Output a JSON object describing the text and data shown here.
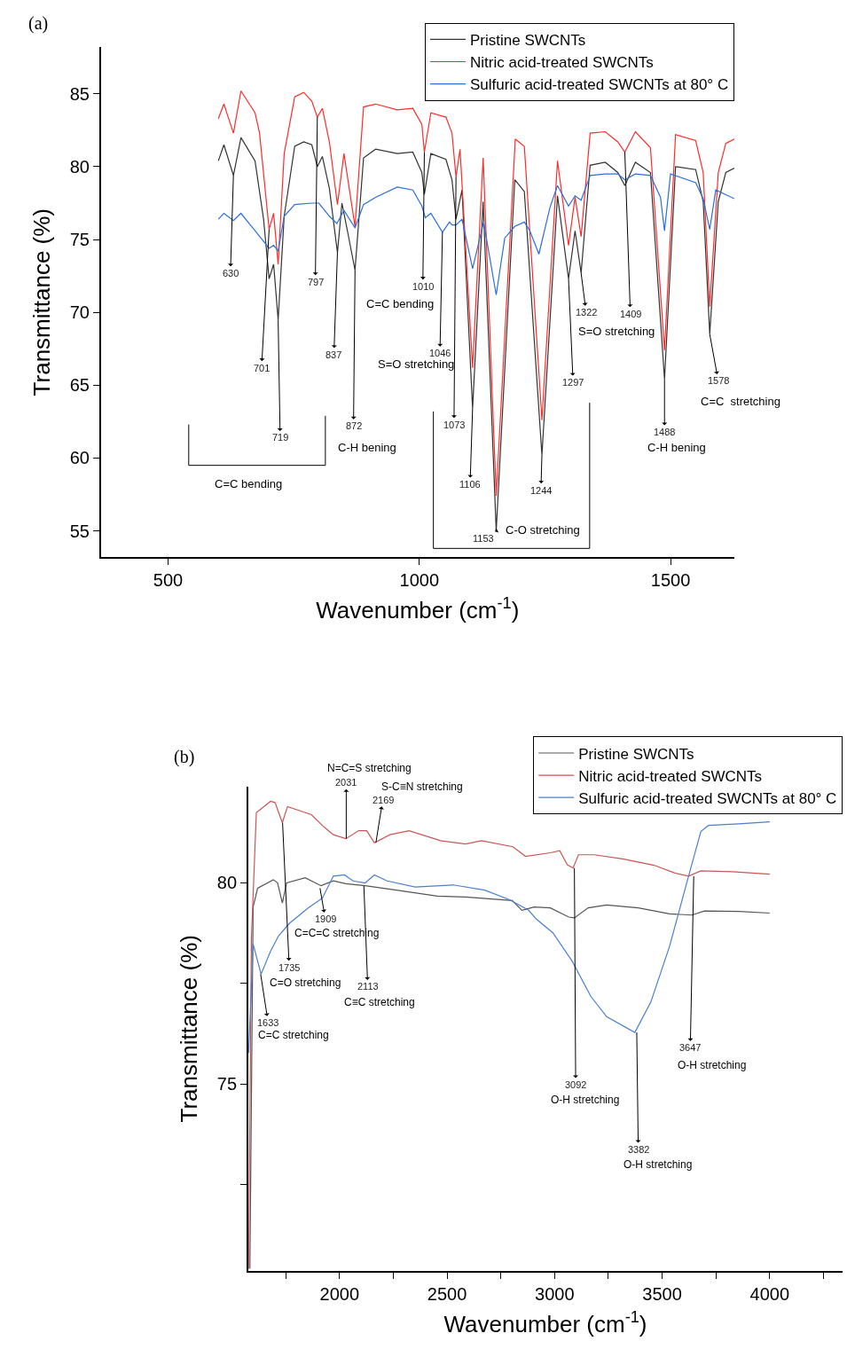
{
  "chart_data": [
    {
      "type": "line",
      "xlabel": "Wavenumber (cm$^{-1}$)",
      "ylabel": "Transmittance (%)",
      "xlim": [
        366,
        1627
      ],
      "ylim": [
        53.2,
        88.2
      ],
      "xticks": [
        500,
        1000,
        1500
      ],
      "yticks": [
        55,
        60,
        65,
        70,
        75,
        80,
        85
      ],
      "grid": false,
      "legend": "top right",
      "marker": "none",
      "line_style": "solid",
      "series": [
        {
          "name": "Pristine SWCNTs",
          "color": "#333333",
          "x": [
            600,
            611,
            630,
            645,
            673,
            690,
            701,
            710,
            719,
            731,
            752,
            770,
            786,
            797,
            807,
            821,
            837,
            846,
            858,
            872,
            889,
            913,
            956,
            987,
            1005,
            1010,
            1023,
            1053,
            1065,
            1073,
            1085,
            1106,
            1127,
            1153,
            1190,
            1209,
            1244,
            1275,
            1297,
            1310,
            1322,
            1340,
            1370,
            1395,
            1409,
            1430,
            1460,
            1488,
            1510,
            1550,
            1565,
            1578,
            1595,
            1610,
            1627
          ],
          "values": [
            80.4,
            81.5,
            79.4,
            82.0,
            80.4,
            76.4,
            72.3,
            73.3,
            69.5,
            76.6,
            81.4,
            81.7,
            81.5,
            80.0,
            80.7,
            78.5,
            74.1,
            77.5,
            75.4,
            72.9,
            80.6,
            81.2,
            80.9,
            81.0,
            79.6,
            78.1,
            80.9,
            80.5,
            79.1,
            76.4,
            78.4,
            63.4,
            77.6,
            55.0,
            79.1,
            78.3,
            60.2,
            78.0,
            72.3,
            75.6,
            72.7,
            80.1,
            80.3,
            79.6,
            78.7,
            80.3,
            79.6,
            65.4,
            80.0,
            79.8,
            77.6,
            68.5,
            77.6,
            79.6,
            79.9
          ]
        },
        {
          "name": "Nitric acid-treated SWCNTs",
          "color": "#ff2a2a",
          "x": [
            600,
            611,
            630,
            645,
            673,
            682,
            701,
            710,
            719,
            731,
            752,
            770,
            786,
            797,
            807,
            821,
            837,
            850,
            872,
            889,
            913,
            956,
            987,
            1005,
            1010,
            1023,
            1053,
            1065,
            1073,
            1081,
            1106,
            1127,
            1153,
            1191,
            1209,
            1244,
            1275,
            1297,
            1310,
            1322,
            1340,
            1370,
            1395,
            1409,
            1430,
            1460,
            1488,
            1510,
            1550,
            1565,
            1578,
            1595,
            1610,
            1627
          ],
          "values": [
            83.3,
            84.3,
            82.3,
            85.2,
            83.7,
            82.3,
            75.7,
            76.8,
            73.3,
            80.9,
            84.8,
            85.1,
            84.5,
            83.4,
            84.0,
            81.7,
            77.4,
            80.9,
            75.9,
            84.1,
            84.3,
            83.9,
            84.0,
            82.9,
            81.0,
            83.7,
            83.4,
            82.3,
            79.3,
            81.2,
            66.2,
            80.6,
            57.4,
            81.9,
            81.4,
            62.6,
            80.4,
            74.6,
            77.9,
            75.2,
            82.3,
            82.4,
            81.7,
            81.0,
            82.4,
            81.3,
            67.4,
            82.2,
            81.8,
            79.6,
            70.4,
            79.6,
            81.6,
            81.9
          ]
        },
        {
          "name": "Sulfuric acid-treated SWCNTs at 80° C",
          "color": "#2a6fdb",
          "x": [
            600,
            611,
            630,
            645,
            673,
            701,
            710,
            719,
            731,
            752,
            786,
            800,
            821,
            836,
            850,
            872,
            889,
            913,
            956,
            987,
            1005,
            1012,
            1023,
            1046,
            1060,
            1065,
            1073,
            1085,
            1106,
            1128,
            1153,
            1170,
            1190,
            1209,
            1220,
            1238,
            1260,
            1275,
            1297,
            1310,
            1322,
            1340,
            1370,
            1395,
            1409,
            1430,
            1460,
            1480,
            1488,
            1500,
            1550,
            1565,
            1578,
            1590,
            1627
          ],
          "values": [
            76.4,
            76.8,
            76.3,
            76.8,
            75.6,
            74.4,
            74.6,
            74.2,
            76.6,
            77.4,
            77.5,
            77.5,
            76.6,
            76.1,
            77.0,
            75.8,
            77.4,
            77.9,
            78.6,
            78.4,
            77.3,
            76.5,
            76.8,
            75.5,
            76.2,
            76.0,
            76.0,
            76.4,
            73.0,
            76.2,
            71.2,
            75.1,
            75.9,
            76.2,
            75.6,
            74.0,
            77.2,
            78.7,
            77.3,
            78.0,
            77.7,
            79.4,
            79.5,
            79.5,
            79.1,
            79.5,
            79.4,
            77.9,
            75.6,
            79.5,
            78.9,
            77.8,
            75.7,
            78.4,
            77.8
          ]
        }
      ],
      "annotations": [
        "(a)",
        {
          "text": "630",
          "x": 630,
          "y": 79.4
        },
        {
          "text": "701",
          "x": 701,
          "y": 75.7
        },
        {
          "text": "719",
          "x": 719,
          "y": 69.5
        },
        {
          "text": "797",
          "x": 797,
          "y": 83.4
        },
        {
          "text": "837",
          "x": 837,
          "y": 74.1
        },
        {
          "text": "872",
          "x": 872,
          "y": 72.9
        },
        {
          "text": "1010",
          "x": 1010,
          "y": 81.0
        },
        {
          "text": "1046",
          "x": 1046,
          "y": 75.5
        },
        {
          "text": "1073",
          "x": 1073,
          "y": 79.3
        },
        {
          "text": "1106",
          "x": 1106,
          "y": 63.4
        },
        {
          "text": "1153",
          "x": 1153,
          "y": 55.0
        },
        {
          "text": "1244",
          "x": 1244,
          "y": 60.2
        },
        {
          "text": "1297",
          "x": 1297,
          "y": 72.3
        },
        {
          "text": "1322",
          "x": 1322,
          "y": 72.7
        },
        {
          "text": "1409",
          "x": 1409,
          "y": 81.0
        },
        {
          "text": "1488",
          "x": 1488,
          "y": 65.4
        },
        {
          "text": "1578",
          "x": 1578,
          "y": 68.5
        },
        "C=C bending",
        "C-H bening",
        "C=C bending",
        "S=O stretching",
        "C-O stretching",
        "S=O stretching",
        "C-H bening",
        "C=C  stretching"
      ]
    },
    {
      "type": "line",
      "xlabel": "Wavenumber (cm$^{-1}$)",
      "ylabel": "Transmittance (%)",
      "xlim": [
        1575,
        4340
      ],
      "ylim": [
        70.35,
        82.4
      ],
      "xticks": [
        {
          "value": 1750,
          "label": null
        },
        2000,
        {
          "value": 2250,
          "label": null
        },
        2500,
        {
          "value": 2750,
          "label": null
        },
        3000,
        {
          "value": 3250,
          "label": null
        },
        3500,
        {
          "value": 3750,
          "label": null
        },
        4000,
        {
          "value": 4250,
          "label": null
        }
      ],
      "yticks": [
        {
          "value": 72.5,
          "label": null
        },
        75,
        {
          "value": 77.5,
          "label": null
        },
        80
      ],
      "grid": false,
      "legend": "top right",
      "marker": "none",
      "line_style": "solid",
      "series": [
        {
          "name": "Pristine SWCNTs",
          "color": "#555555",
          "x": [
            1583,
            1598,
            1619,
            1692,
            1712,
            1734,
            1754,
            1840,
            1914,
            1971,
            2029,
            2119,
            2265,
            2455,
            2586,
            2762,
            2803,
            2848,
            2905,
            2980,
            3066,
            3092,
            3156,
            3242,
            3389,
            3535,
            3638,
            3697,
            3857,
            4000
          ],
          "values": [
            70.4,
            79.4,
            79.87,
            80.08,
            80.0,
            79.5,
            80.0,
            80.13,
            79.93,
            80.05,
            79.98,
            79.93,
            79.82,
            79.67,
            79.65,
            79.58,
            79.56,
            79.32,
            79.4,
            79.38,
            79.15,
            79.13,
            79.38,
            79.45,
            79.38,
            79.23,
            79.2,
            79.3,
            79.29,
            79.25
          ]
        },
        {
          "name": "Nitric acid-treated SWCNTs",
          "color": "#cc5555",
          "x": [
            1577,
            1590,
            1613,
            1679,
            1700,
            1734,
            1758,
            1869,
            1926,
            1971,
            2029,
            2089,
            2126,
            2162,
            2234,
            2323,
            2470,
            2586,
            2660,
            2806,
            2865,
            2980,
            3024,
            3059,
            3086,
            3111,
            3184,
            3316,
            3462,
            3557,
            3623,
            3680,
            3828,
            4000
          ],
          "values": [
            70.4,
            78.6,
            81.75,
            82.03,
            82.0,
            81.5,
            81.9,
            81.7,
            81.4,
            81.2,
            81.1,
            81.3,
            81.3,
            81.0,
            81.2,
            81.3,
            81.05,
            80.97,
            81.05,
            80.9,
            80.66,
            80.75,
            80.8,
            80.45,
            80.37,
            80.7,
            80.7,
            80.6,
            80.44,
            80.25,
            80.17,
            80.3,
            80.28,
            80.22
          ]
        },
        {
          "name": "Sulfuric acid-treated SWCNTs at 80° C",
          "color": "#4a7fd0",
          "x": [
            1577,
            1598,
            1635,
            1679,
            1716,
            1766,
            1855,
            1920,
            1971,
            2023,
            2063,
            2119,
            2162,
            2221,
            2352,
            2529,
            2675,
            2791,
            2879,
            2915,
            2992,
            3082,
            3168,
            3242,
            3373,
            3447,
            3535,
            3623,
            3680,
            3715,
            3857,
            4000
          ],
          "values": [
            75.77,
            78.48,
            77.73,
            78.3,
            78.68,
            78.99,
            79.38,
            79.62,
            80.17,
            80.2,
            80.05,
            80.0,
            80.2,
            80.05,
            79.9,
            79.95,
            79.82,
            79.58,
            79.32,
            79.1,
            78.76,
            78.05,
            77.18,
            76.67,
            76.28,
            77.03,
            78.43,
            80.17,
            81.28,
            81.43,
            81.47,
            81.52
          ]
        }
      ],
      "annotations": [
        "(b)",
        {
          "text": "1633",
          "x": 1633,
          "y": 77.73
        },
        {
          "text": "1735",
          "x": 1735,
          "y": 81.5
        },
        {
          "text": "1909",
          "x": 1909,
          "y": 79.87
        },
        {
          "text": "2031",
          "x": 2031,
          "y": 81.1
        },
        {
          "text": "2113",
          "x": 2113,
          "y": 79.93
        },
        {
          "text": "2169",
          "x": 2169,
          "y": 81.0
        },
        {
          "text": "3092",
          "x": 3092,
          "y": 80.37
        },
        {
          "text": "3382",
          "x": 3382,
          "y": 76.28
        },
        {
          "text": "3647",
          "x": 3647,
          "y": 80.17
        },
        "N=C=S stretching",
        "S-C≡N stretching",
        "C=C=C stretching",
        "C=O stretching",
        "C≡C stretching",
        "C=C stretching",
        "O-H stretching",
        "O-H stretching",
        "O-H stretching"
      ]
    }
  ]
}
